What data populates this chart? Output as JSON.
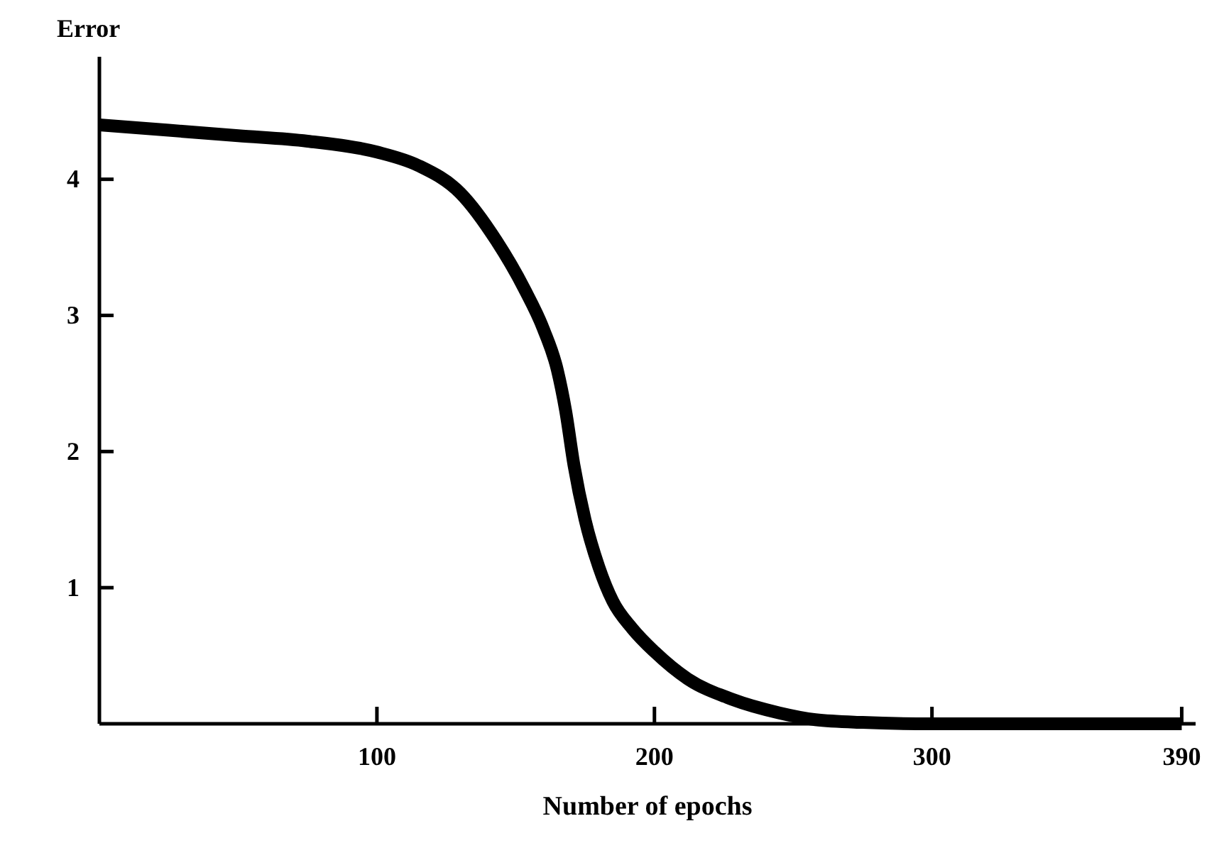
{
  "chart_data": {
    "type": "line",
    "ylabel": "Error",
    "xlabel": "Number of epochs",
    "x": [
      0,
      25,
      50,
      75,
      100,
      115,
      130,
      143,
      153,
      160,
      165,
      168,
      171,
      175,
      180,
      185,
      192,
      200,
      212,
      228,
      245,
      258,
      275,
      300,
      340,
      390
    ],
    "series": [
      {
        "color": "#000000",
        "values": [
          4.4,
          4.36,
          4.32,
          4.28,
          4.2,
          4.1,
          3.9,
          3.55,
          3.2,
          2.9,
          2.6,
          2.3,
          1.9,
          1.5,
          1.15,
          0.9,
          0.7,
          0.53,
          0.33,
          0.18,
          0.08,
          0.03,
          0.01,
          0,
          0,
          0
        ]
      }
    ],
    "xlim": [
      0,
      395
    ],
    "ylim": [
      0,
      4.9
    ],
    "xticks": [
      100,
      200,
      300,
      390
    ],
    "yticks": [
      1,
      2,
      3,
      4
    ],
    "grid": false,
    "marker": "none",
    "line_style": "solid"
  }
}
